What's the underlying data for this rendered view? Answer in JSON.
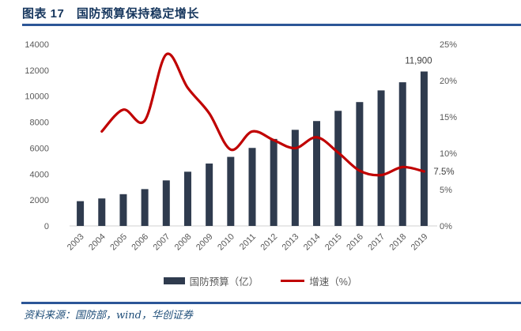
{
  "figure": {
    "title": "图表 17　国防预算保持稳定增长",
    "source": "资料来源：国防部，wind，华创证券"
  },
  "colors": {
    "bar": "#2F3B4E",
    "line": "#C00000",
    "title_text": "#17375E",
    "rule": "#2C5697",
    "axis_text": "#595959",
    "data_label_text": "#404040",
    "baseline": "#D9D9D9"
  },
  "chart_data": {
    "type": "bar",
    "subtype": "combo-bar-line",
    "title": "图表 17　国防预算保持稳定增长",
    "categories": [
      "2003",
      "2004",
      "2005",
      "2006",
      "2007",
      "2008",
      "2009",
      "2010",
      "2011",
      "2012",
      "2013",
      "2014",
      "2015",
      "2016",
      "2017",
      "2018",
      "2019"
    ],
    "series": [
      {
        "name": "国防预算（亿）",
        "type": "bar",
        "axis": "left",
        "color": "#2F3B4E",
        "values": [
          1908,
          2117,
          2447,
          2838,
          3509,
          4178,
          4807,
          5321,
          6011,
          6703,
          7406,
          8082,
          8869,
          9544,
          10444,
          11070,
          11900
        ]
      },
      {
        "name": "增速（%）",
        "type": "line",
        "axis": "right",
        "color": "#C00000",
        "smooth": true,
        "values": [
          null,
          13.0,
          16.0,
          14.5,
          23.6,
          19.0,
          15.5,
          10.5,
          13.0,
          11.8,
          10.7,
          12.2,
          10.1,
          7.6,
          7.0,
          8.1,
          7.5
        ]
      }
    ],
    "left_axis": {
      "min": 0,
      "max": 14000,
      "tick_step": 2000,
      "labels": [
        "0",
        "2000",
        "4000",
        "6000",
        "8000",
        "10000",
        "12000",
        "14000"
      ]
    },
    "right_axis": {
      "min": 0,
      "max": 25,
      "tick_step": 5,
      "labels": [
        "0%",
        "5%",
        "10%",
        "15%",
        "20%",
        "25%"
      ]
    },
    "data_labels": [
      {
        "series": 0,
        "category_index": 16,
        "text": "11,900"
      },
      {
        "series": 1,
        "category_index": 16,
        "text": "7.5%"
      }
    ],
    "legend_position": "bottom",
    "grid": false,
    "x_label_rotation": -45
  }
}
